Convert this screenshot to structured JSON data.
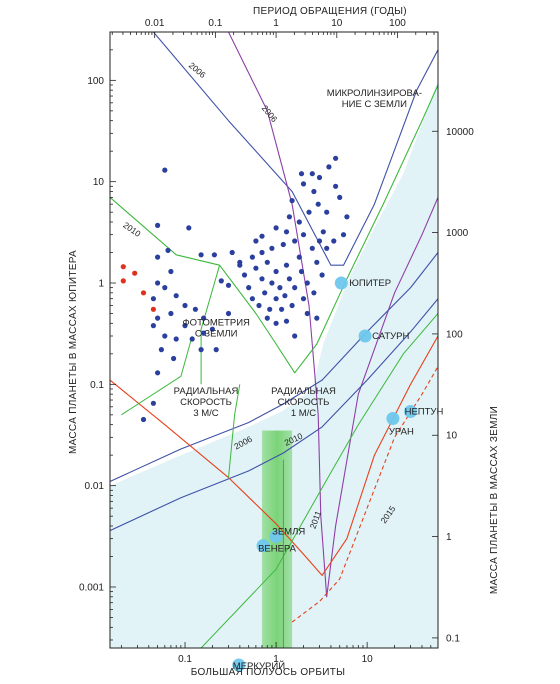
{
  "chart_data": {
    "type": "scatter",
    "xlabel": "БОЛЬШАЯ ПОЛУОСЬ ОРБИТЫ",
    "x2label": "ПЕРИОД ОБРАЩЕНИЯ (ГОДЫ)",
    "ylabel": "МАССА ПЛАНЕТЫ В МАССАХ ЮПИТЕРА",
    "y2label": "МАССА ПЛАНЕТЫ В МАССАХ ЗЕМЛИ",
    "x_scale": "log",
    "y_scale": "log",
    "xlim": [
      0.015,
      60
    ],
    "ylim": [
      0.00025,
      300
    ],
    "x_ticks": [
      "0.1",
      "1",
      "10"
    ],
    "x2_ticks": [
      "0.01",
      "0.1",
      "1",
      "10",
      "100"
    ],
    "y_ticks": [
      "100",
      "10",
      "1",
      "0.1",
      "0.01",
      "0.001"
    ],
    "y2_ticks": [
      "10000",
      "1000",
      "100",
      "10",
      "1",
      "0.1"
    ],
    "colors": {
      "exoplanet": "#2b3f9e",
      "exoplanet_photometry": "#e0301e",
      "solar_planet": "#6ec7ec",
      "radial_velocity": "#3f51a8",
      "photometry": "#3db83d",
      "microlensing": "#8e3fa8",
      "astrometry": "#e8401c",
      "zone_fill": "#d7eff4",
      "earth_band": "#6fd068"
    },
    "annotations": [
      {
        "lines": [
          "МИКРОЛИНЗИРОВА-",
          "НИЕ С ЗЕМЛИ"
        ],
        "x": 12,
        "y": 70
      },
      {
        "lines": [
          "ФОТОМЕТРИЯ",
          "С ЗЕМЛИ"
        ],
        "x": 0.22,
        "y": 0.38
      },
      {
        "lines": [
          "РАДИАЛЬНАЯ",
          "СКОРОСТЬ",
          "3 М/С"
        ],
        "x": 0.17,
        "y": 0.08
      },
      {
        "lines": [
          "РАДИАЛЬНАЯ",
          "СКОРОСТЬ",
          "1 М/С"
        ],
        "x": 2.0,
        "y": 0.08
      }
    ],
    "year_labels": [
      {
        "text": "2006",
        "x": 0.13,
        "y": 120,
        "angle": 40
      },
      {
        "text": "2006",
        "x": 0.8,
        "y": 45,
        "angle": 50
      },
      {
        "text": "2010",
        "x": 0.025,
        "y": 3.2,
        "angle": 35
      },
      {
        "text": "2006",
        "x": 0.45,
        "y": 0.025,
        "angle": -28
      },
      {
        "text": "2010",
        "x": 1.6,
        "y": 0.027,
        "angle": -25
      },
      {
        "text": "2011",
        "x": 2.9,
        "y": 0.0045,
        "angle": -70
      },
      {
        "text": "2015",
        "x": 18,
        "y": 0.005,
        "angle": -55
      }
    ],
    "solar_planets": [
      {
        "name": "ЮПИТЕР",
        "x": 5.2,
        "y": 1.0
      },
      {
        "name": "САТУРН",
        "x": 9.5,
        "y": 0.3
      },
      {
        "name": "УРАН",
        "x": 19.2,
        "y": 0.046
      },
      {
        "name": "НЕПТУН",
        "x": 30,
        "y": 0.054
      },
      {
        "name": "ЗЕМЛЯ",
        "x": 1.0,
        "y": 0.00315
      },
      {
        "name": "ВЕНЕРА",
        "x": 0.72,
        "y": 0.00256
      },
      {
        "name": "МЕРКУРИЙ",
        "x": 0.39,
        "y": 0.00017
      }
    ],
    "series": [
      {
        "name": "",
        "points": [
          [
            0.06,
            13
          ],
          [
            0.05,
            3.7
          ],
          [
            0.11,
            3.5
          ],
          [
            0.15,
            1.9
          ],
          [
            0.21,
            1.9
          ],
          [
            0.33,
            2.0
          ],
          [
            0.4,
            1.6
          ],
          [
            0.05,
            1.8
          ],
          [
            0.065,
            2.1
          ],
          [
            0.05,
            1.0
          ],
          [
            0.07,
            1.3
          ],
          [
            0.045,
            0.7
          ],
          [
            0.06,
            0.9
          ],
          [
            0.08,
            0.75
          ],
          [
            0.1,
            0.6
          ],
          [
            0.13,
            0.55
          ],
          [
            0.16,
            0.45
          ],
          [
            0.07,
            0.5
          ],
          [
            0.05,
            0.45
          ],
          [
            0.1,
            0.38
          ],
          [
            0.045,
            0.38
          ],
          [
            0.06,
            0.3
          ],
          [
            0.08,
            0.28
          ],
          [
            0.12,
            0.28
          ],
          [
            0.16,
            0.32
          ],
          [
            0.22,
            0.22
          ],
          [
            0.055,
            0.22
          ],
          [
            0.075,
            0.18
          ],
          [
            0.15,
            0.22
          ],
          [
            0.05,
            0.13
          ],
          [
            0.045,
            0.065
          ],
          [
            0.035,
            0.045
          ],
          [
            0.3,
            0.95
          ],
          [
            0.3,
            0.5
          ],
          [
            0.25,
            1.05
          ],
          [
            0.4,
            1.5
          ],
          [
            0.55,
            1.8
          ],
          [
            0.7,
            2.0
          ],
          [
            0.9,
            2.2
          ],
          [
            1.2,
            2.4
          ],
          [
            1.6,
            2.6
          ],
          [
            2.0,
            3.0
          ],
          [
            0.45,
            1.2
          ],
          [
            0.6,
            1.4
          ],
          [
            0.8,
            1.6
          ],
          [
            1.0,
            1.3
          ],
          [
            1.3,
            1.5
          ],
          [
            1.8,
            1.8
          ],
          [
            2.5,
            2.2
          ],
          [
            0.5,
            0.9
          ],
          [
            0.7,
            1.1
          ],
          [
            0.9,
            1.0
          ],
          [
            1.1,
            0.9
          ],
          [
            1.4,
            1.1
          ],
          [
            1.9,
            1.3
          ],
          [
            2.8,
            1.6
          ],
          [
            0.55,
            0.7
          ],
          [
            0.75,
            0.8
          ],
          [
            1.0,
            0.7
          ],
          [
            1.25,
            0.75
          ],
          [
            1.6,
            0.9
          ],
          [
            2.2,
            1.0
          ],
          [
            3.2,
            1.2
          ],
          [
            0.65,
            0.6
          ],
          [
            0.85,
            0.55
          ],
          [
            1.15,
            0.55
          ],
          [
            1.5,
            0.6
          ],
          [
            2.0,
            0.7
          ],
          [
            2.6,
            0.8
          ],
          [
            1.0,
            3.5
          ],
          [
            1.4,
            4.5
          ],
          [
            1.8,
            4.0
          ],
          [
            2.3,
            5.0
          ],
          [
            2.9,
            6.0
          ],
          [
            3.6,
            5.0
          ],
          [
            2.6,
            8.0
          ],
          [
            3.0,
            11
          ],
          [
            3.8,
            14
          ],
          [
            4.5,
            9.0
          ],
          [
            5.0,
            7.0
          ],
          [
            6.0,
            4.5
          ],
          [
            1.5,
            6.5
          ],
          [
            2.0,
            9.5
          ],
          [
            2.5,
            12
          ],
          [
            4.5,
            17
          ],
          [
            1.9,
            12
          ],
          [
            3.3,
            3.2
          ],
          [
            4.3,
            2.6
          ],
          [
            5.5,
            3.0
          ],
          [
            3.6,
            2.2
          ],
          [
            1.6,
            0.3
          ],
          [
            1.0,
            0.4
          ],
          [
            0.8,
            0.45
          ],
          [
            2.2,
            0.5
          ],
          [
            2.8,
            0.45
          ],
          [
            1.3,
            0.42
          ],
          [
            0.2,
            0.35
          ],
          [
            0.7,
            2.9
          ],
          [
            0.6,
            2.6
          ],
          [
            1.3,
            3.2
          ],
          [
            3.0,
            2.6
          ]
        ]
      },
      {
        "name": "",
        "points": [
          [
            0.021,
            1.45
          ],
          [
            0.021,
            1.05
          ],
          [
            0.028,
            1.25
          ],
          [
            0.035,
            0.8
          ],
          [
            0.045,
            0.55
          ]
        ]
      }
    ],
    "curves": {
      "microlensing_2006": [
        [
          0.045,
          300
        ],
        [
          0.3,
          40
        ],
        [
          1.5,
          8
        ],
        [
          4.0,
          1.5
        ],
        [
          5.5,
          1.5
        ],
        [
          12,
          6
        ],
        [
          35,
          80
        ],
        [
          60,
          200
        ]
      ],
      "microlensing_2006b": [
        [
          0.3,
          300
        ],
        [
          0.8,
          50
        ],
        [
          1.5,
          6
        ],
        [
          2.3,
          0.6
        ],
        [
          2.9,
          0.05
        ],
        [
          3.1,
          0.005
        ],
        [
          3.6,
          0.0008
        ],
        [
          4.5,
          0.004
        ],
        [
          8,
          0.08
        ],
        [
          20,
          0.8
        ],
        [
          40,
          3
        ],
        [
          60,
          7
        ]
      ],
      "photometry_2010": [
        [
          0.015,
          7
        ],
        [
          0.08,
          1.9
        ],
        [
          0.24,
          1.5
        ],
        [
          0.6,
          0.5
        ],
        [
          1.0,
          0.25
        ],
        [
          1.6,
          0.13
        ],
        [
          2.8,
          0.25
        ],
        [
          6,
          1.1
        ],
        [
          15,
          6
        ],
        [
          40,
          40
        ],
        [
          60,
          90
        ]
      ],
      "rv_3ms": [
        [
          0.015,
          0.011
        ],
        [
          0.09,
          0.023
        ],
        [
          0.5,
          0.042
        ],
        [
          1.2,
          0.064
        ],
        [
          3.2,
          0.11
        ],
        [
          10,
          0.33
        ],
        [
          30,
          0.9
        ],
        [
          60,
          2.0
        ]
      ],
      "rv_1ms": [
        [
          0.015,
          0.0036
        ],
        [
          0.09,
          0.0076
        ],
        [
          0.5,
          0.014
        ],
        [
          1.2,
          0.021
        ],
        [
          3.2,
          0.038
        ],
        [
          10,
          0.11
        ],
        [
          30,
          0.33
        ],
        [
          60,
          0.7
        ]
      ],
      "astrometry_2011": [
        [
          0.015,
          0.11
        ],
        [
          0.06,
          0.04
        ],
        [
          0.3,
          0.012
        ],
        [
          1.0,
          0.0042
        ],
        [
          2.0,
          0.0021
        ],
        [
          3.2,
          0.0013
        ],
        [
          6,
          0.003
        ],
        [
          12,
          0.02
        ],
        [
          30,
          0.1
        ],
        [
          60,
          0.3
        ]
      ],
      "astrometry_2015": [
        [
          1.5,
          0.00045
        ],
        [
          3.0,
          0.00072
        ],
        [
          5,
          0.0012
        ],
        [
          10,
          0.006
        ],
        [
          20,
          0.03
        ],
        [
          40,
          0.08
        ],
        [
          60,
          0.15
        ]
      ]
    }
  }
}
